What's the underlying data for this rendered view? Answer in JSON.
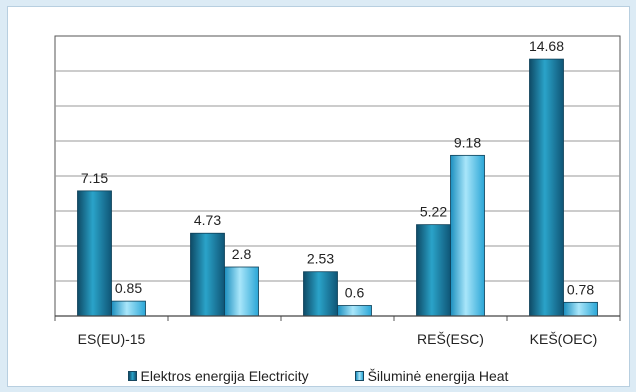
{
  "chart_data": {
    "type": "bar",
    "categories": [
      "ES(EU)-15",
      "",
      "",
      "REŠ(ESC)",
      "KEŠ(OEC)"
    ],
    "series": [
      {
        "name": "Elektros energija  Electricity",
        "values": [
          7.15,
          4.73,
          2.53,
          5.22,
          14.68
        ],
        "color": "#1d86a8"
      },
      {
        "name": "Šiluminė energija  Heat",
        "values": [
          0.85,
          2.8,
          0.6,
          9.18,
          0.78
        ],
        "color": "#3fb6e4"
      }
    ],
    "data_labels": [
      [
        "7.15",
        "4.73",
        "2.53",
        "5.22",
        "14.68"
      ],
      [
        "0.85",
        "2.8",
        "0.6",
        "9.18",
        "0.78"
      ]
    ],
    "ylim": [
      0,
      16
    ],
    "grid": true,
    "legend_position": "bottom"
  },
  "legend": {
    "electricity": "Elektros energija  Electricity",
    "heat": "Šiluminė energija  Heat"
  }
}
